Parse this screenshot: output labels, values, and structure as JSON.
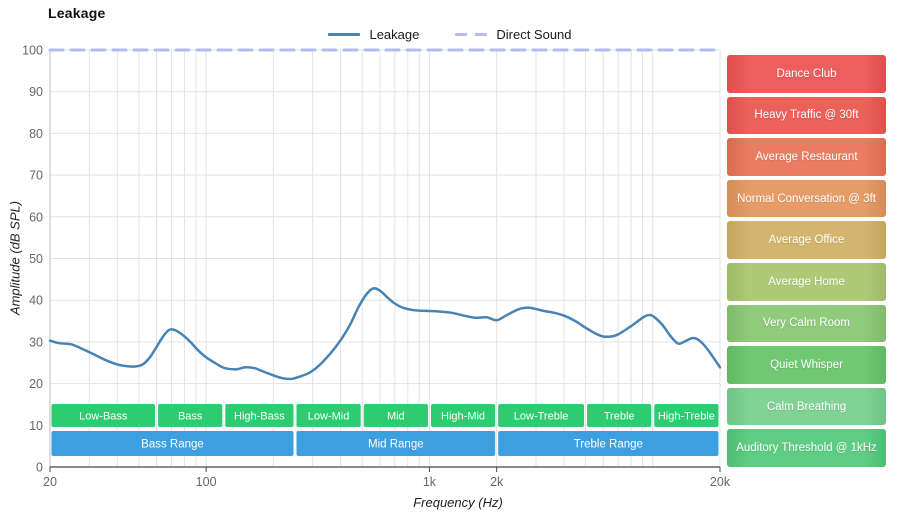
{
  "title": "Leakage",
  "legend": [
    {
      "label": "Leakage",
      "color": "#4783b3",
      "style": "solid"
    },
    {
      "label": "Direct Sound",
      "color": "#b2bbf2",
      "style": "dashed"
    }
  ],
  "chart_data": {
    "type": "line",
    "title": "Leakage",
    "xlabel": "Frequency (Hz)",
    "ylabel": "Amplitude (dB SPL)",
    "x_scale": "log",
    "xlim": [
      20,
      20000
    ],
    "ylim": [
      0,
      100
    ],
    "grid": true,
    "legend_position": "top",
    "x_ticks": [
      {
        "value": 20,
        "label": "20"
      },
      {
        "value": 100,
        "label": "100"
      },
      {
        "value": 1000,
        "label": "1k"
      },
      {
        "value": 2000,
        "label": "2k"
      },
      {
        "value": 20000,
        "label": "20k"
      }
    ],
    "y_ticks": [
      0,
      10,
      20,
      30,
      40,
      50,
      60,
      70,
      80,
      90,
      100
    ],
    "series": [
      {
        "name": "Leakage",
        "color": "#4783b3",
        "style": "solid",
        "x": [
          20,
          22,
          25,
          28,
          32,
          36,
          40,
          44,
          48,
          52,
          56,
          60,
          64,
          68,
          72,
          78,
          85,
          92,
          100,
          110,
          120,
          135,
          150,
          165,
          180,
          200,
          220,
          240,
          260,
          290,
          320,
          360,
          400,
          440,
          480,
          520,
          560,
          600,
          650,
          700,
          760,
          830,
          900,
          1000,
          1100,
          1250,
          1400,
          1600,
          1800,
          2000,
          2200,
          2500,
          2800,
          3200,
          3600,
          4000,
          4500,
          5000,
          5500,
          6000,
          6500,
          7000,
          8000,
          9000,
          9500,
          10000,
          11000,
          12000,
          13000,
          14000,
          15000,
          16000,
          17500,
          20000
        ],
        "y": [
          30.3,
          29.7,
          29.4,
          28.3,
          26.8,
          25.5,
          24.6,
          24.2,
          24.1,
          24.6,
          26.3,
          28.8,
          31.2,
          32.8,
          32.9,
          31.8,
          30.0,
          28.0,
          26.3,
          24.9,
          23.8,
          23.4,
          23.9,
          23.7,
          22.9,
          22.0,
          21.3,
          21.1,
          21.6,
          22.6,
          24.3,
          27.2,
          30.4,
          34.0,
          38.2,
          41.3,
          42.8,
          42.3,
          40.6,
          39.2,
          38.2,
          37.7,
          37.5,
          37.4,
          37.3,
          37.0,
          36.4,
          35.8,
          35.9,
          35.2,
          36.3,
          37.8,
          38.2,
          37.5,
          37.0,
          36.3,
          35.0,
          33.4,
          32.1,
          31.3,
          31.3,
          31.8,
          33.8,
          35.8,
          36.4,
          36.2,
          34.2,
          31.4,
          29.6,
          30.2,
          30.9,
          30.5,
          28.4,
          23.9
        ]
      },
      {
        "name": "Direct Sound",
        "color": "#b2bbf2",
        "style": "dashed",
        "x": [
          20,
          20000
        ],
        "y": [
          100,
          100
        ]
      }
    ],
    "frequency_sub_bands": [
      {
        "label": "Low-Bass",
        "from": 20,
        "to": 60
      },
      {
        "label": "Bass",
        "from": 60,
        "to": 120
      },
      {
        "label": "High-Bass",
        "from": 120,
        "to": 250
      },
      {
        "label": "Low-Mid",
        "from": 250,
        "to": 500
      },
      {
        "label": "Mid",
        "from": 500,
        "to": 1000
      },
      {
        "label": "High-Mid",
        "from": 1000,
        "to": 2000
      },
      {
        "label": "Low-Treble",
        "from": 2000,
        "to": 5000
      },
      {
        "label": "Treble",
        "from": 5000,
        "to": 10000
      },
      {
        "label": "High-Treble",
        "from": 10000,
        "to": 20000
      }
    ],
    "frequency_ranges": [
      {
        "label": "Bass Range",
        "from": 20,
        "to": 250
      },
      {
        "label": "Mid Range",
        "from": 250,
        "to": 2000
      },
      {
        "label": "Treble Range",
        "from": 2000,
        "to": 20000
      }
    ],
    "band_colors": {
      "sub_band": "#2ecc71",
      "range": "#3b9fe0"
    }
  },
  "noise_levels": [
    {
      "label": "Dance Club",
      "color": "#ed5e5e"
    },
    {
      "label": "Heavy Traffic @ 30ft",
      "color": "#ed615b"
    },
    {
      "label": "Average Restaurant",
      "color": "#ea7c62"
    },
    {
      "label": "Normal Conversation @ 3ft",
      "color": "#e59c69"
    },
    {
      "label": "Average Office",
      "color": "#d4b56d"
    },
    {
      "label": "Average Home",
      "color": "#aeca79"
    },
    {
      "label": "Very Calm Room",
      "color": "#8fcb7b"
    },
    {
      "label": "Quiet Whisper",
      "color": "#70c873"
    },
    {
      "label": "Calm Breathing",
      "color": "#80d394"
    },
    {
      "label": "Auditory Threshold @ 1kHz",
      "color": "#5ecd83"
    }
  ]
}
